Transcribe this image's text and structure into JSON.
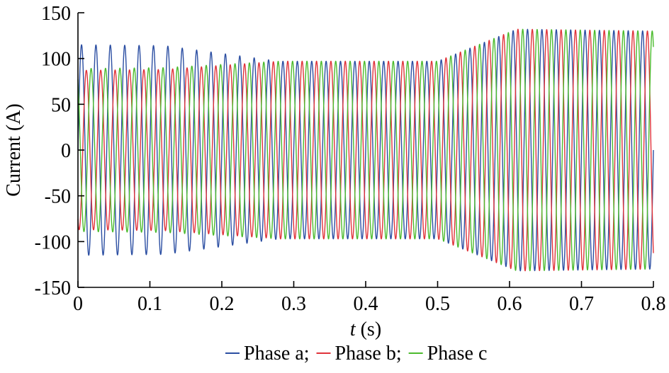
{
  "chart_data": {
    "type": "line",
    "title": "",
    "xlabel_var": "t",
    "xlabel_unit": " (s)",
    "ylabel": "Current (A)",
    "xlim": [
      0,
      0.8
    ],
    "ylim": [
      -150,
      150
    ],
    "xticks": [
      0,
      0.1,
      0.2,
      0.3,
      0.4,
      0.5,
      0.6,
      0.7,
      0.8
    ],
    "xtick_labels": [
      "0",
      "0.1",
      "0.2",
      "0.3",
      "0.4",
      "0.5",
      "0.6",
      "0.7",
      "0.8"
    ],
    "yticks": [
      -150,
      -100,
      -50,
      0,
      50,
      100,
      150
    ],
    "ytick_labels": [
      "-150",
      "-100",
      "-50",
      "0",
      "50",
      "100",
      "150"
    ],
    "grid": false,
    "legend_position": "bottom-center",
    "frequency_hz": 50,
    "series": [
      {
        "name": "Phase a",
        "legend_label": "Phase a;",
        "color": "#2b4ea2",
        "phase_deg": 0,
        "envelope": [
          [
            0,
            115
          ],
          [
            0.12,
            114
          ],
          [
            0.28,
            97
          ],
          [
            0.5,
            97
          ],
          [
            0.61,
            132
          ],
          [
            0.8,
            130
          ]
        ]
      },
      {
        "name": "Phase b",
        "legend_label": "Phase b;",
        "color": "#e0333a",
        "phase_deg": -120,
        "envelope": [
          [
            0,
            87
          ],
          [
            0.12,
            88
          ],
          [
            0.28,
            97
          ],
          [
            0.5,
            97
          ],
          [
            0.61,
            132
          ],
          [
            0.8,
            130
          ]
        ]
      },
      {
        "name": "Phase c",
        "legend_label": "Phase c",
        "color": "#4cbb2e",
        "phase_deg": 120,
        "envelope": [
          [
            0,
            89
          ],
          [
            0.12,
            90
          ],
          [
            0.28,
            97
          ],
          [
            0.5,
            97
          ],
          [
            0.61,
            132
          ],
          [
            0.8,
            130
          ]
        ]
      }
    ]
  }
}
